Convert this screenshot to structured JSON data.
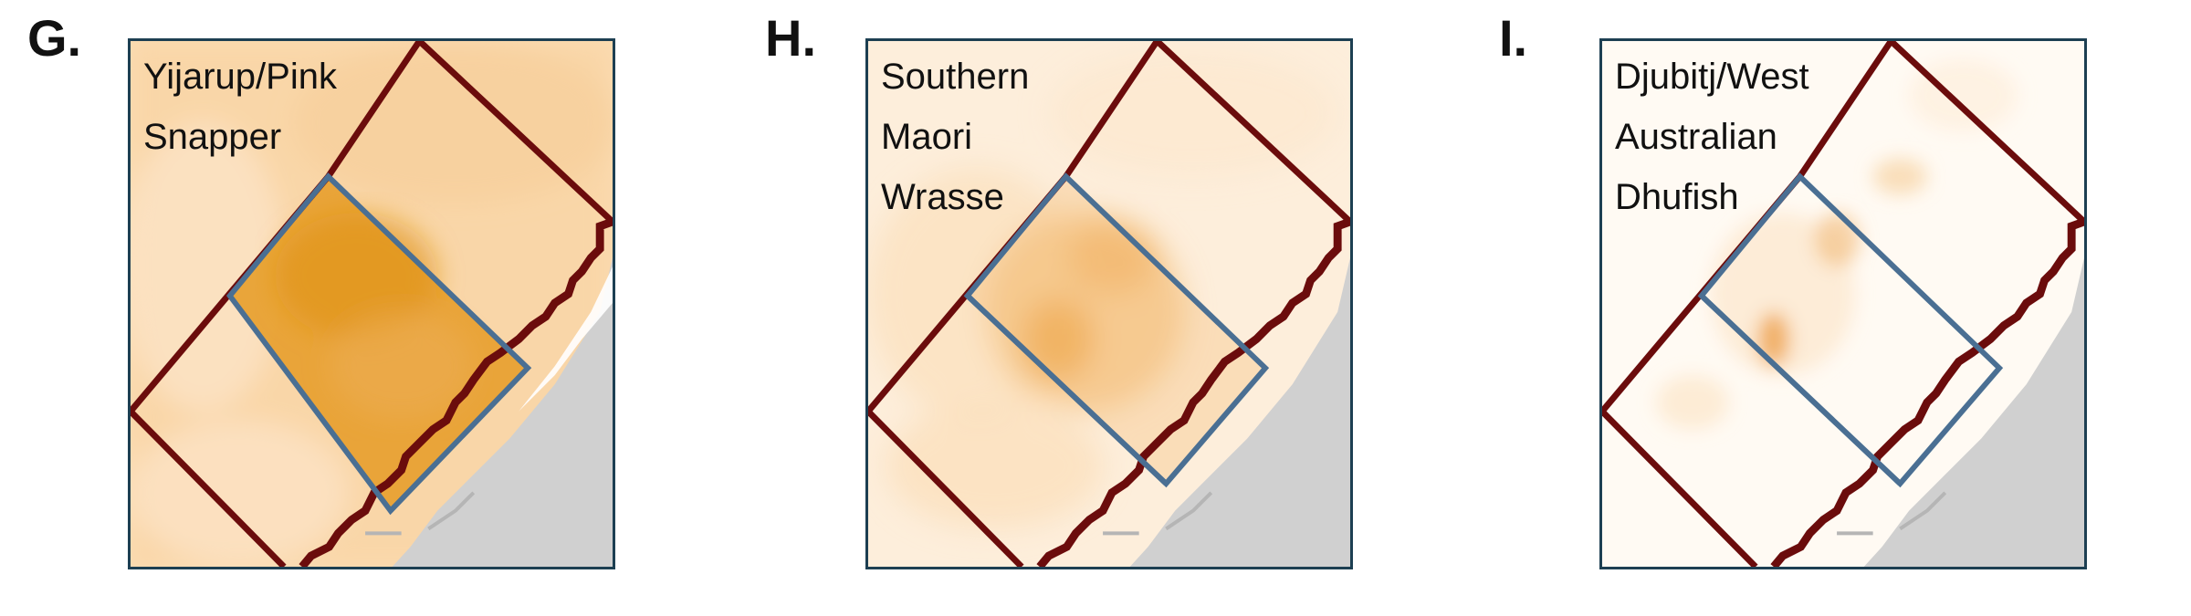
{
  "panels": [
    {
      "label": "G.",
      "species_lines": [
        "Yijarup/Pink",
        "Snapper"
      ],
      "intensity": "high"
    },
    {
      "label": "H.",
      "species_lines": [
        "Southern",
        "Maori",
        "Wrasse"
      ],
      "intensity": "medium"
    },
    {
      "label": "I.",
      "species_lines": [
        "Djubitj/West",
        "Australian",
        "Dhufish"
      ],
      "intensity": "low"
    }
  ],
  "colors": {
    "frame": "#1d3f52",
    "outer_zone": "#6b0c0c",
    "inner_zone": "#4a6f93",
    "land": "#d0d0d0",
    "density_high": "#e39a1f",
    "density_light": "#fbe3c2"
  }
}
